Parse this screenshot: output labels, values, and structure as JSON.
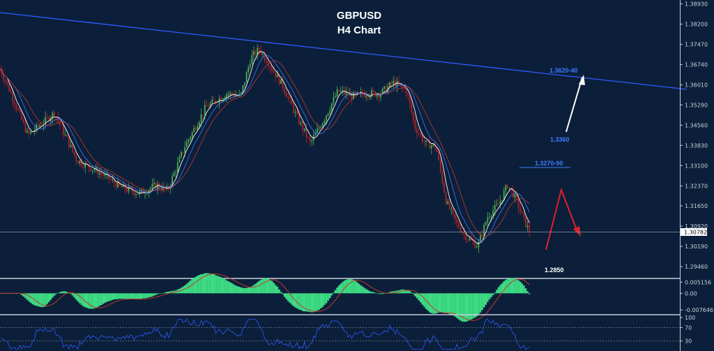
{
  "chart_data": {
    "type": "candlestick",
    "title_line1": "GBPUSD",
    "title_line2": "H4 Chart",
    "price_axis": {
      "ticks": [
        "1.38930",
        "1.38200",
        "1.37470",
        "1.36740",
        "1.36010",
        "1.35290",
        "1.34560",
        "1.33830",
        "1.33100",
        "1.32370",
        "1.31650",
        "1.30920",
        "1.30190",
        "1.29460"
      ],
      "tick_values": [
        1.3893,
        1.382,
        1.3747,
        1.3674,
        1.3601,
        1.3529,
        1.3456,
        1.3383,
        1.331,
        1.3237,
        1.3165,
        1.3092,
        1.3019,
        1.2946
      ],
      "current_price": "1.30782",
      "current_value": 1.30782
    },
    "ylim": [
      1.2906,
      1.3907
    ],
    "annotations": {
      "resistance_zone": "1.3620-40",
      "target_1": "1.3360",
      "zone_2": "1.3270-90",
      "support": "1.2850"
    },
    "colors": {
      "background": "#0b1f3a",
      "bull": "#4caf50",
      "bear": "#b22222",
      "trendline": "#2f5bff",
      "annotation_blue": "#3d7bff",
      "arrow_up": "#ffffff",
      "arrow_red": "#e0202a",
      "oscillator": "#3ddc84"
    },
    "sparse_price_path": [
      [
        0,
        1.366
      ],
      [
        14,
        1.358
      ],
      [
        40,
        1.342
      ],
      [
        78,
        1.35
      ],
      [
        110,
        1.333
      ],
      [
        140,
        1.329
      ],
      [
        175,
        1.323
      ],
      [
        200,
        1.321
      ],
      [
        225,
        1.324
      ],
      [
        240,
        1.322
      ],
      [
        265,
        1.338
      ],
      [
        295,
        1.352
      ],
      [
        325,
        1.357
      ],
      [
        345,
        1.356
      ],
      [
        360,
        1.37
      ],
      [
        372,
        1.373
      ],
      [
        385,
        1.368
      ],
      [
        405,
        1.36
      ],
      [
        425,
        1.349
      ],
      [
        445,
        1.339
      ],
      [
        465,
        1.348
      ],
      [
        485,
        1.358
      ],
      [
        505,
        1.356
      ],
      [
        525,
        1.357
      ],
      [
        545,
        1.357
      ],
      [
        565,
        1.361
      ],
      [
        583,
        1.358
      ],
      [
        595,
        1.345
      ],
      [
        610,
        1.339
      ],
      [
        625,
        1.338
      ],
      [
        640,
        1.318
      ],
      [
        655,
        1.31
      ],
      [
        670,
        1.305
      ],
      [
        685,
        1.302
      ],
      [
        700,
        1.313
      ],
      [
        715,
        1.317
      ],
      [
        728,
        1.324
      ],
      [
        740,
        1.319
      ],
      [
        750,
        1.312
      ],
      [
        760,
        1.307
      ]
    ],
    "macd": {
      "ticks": [
        "0.005156",
        "0.00",
        "-0.007646"
      ],
      "tick_values": [
        0.005156,
        0.0,
        -0.007646
      ],
      "ylim": [
        -0.0092,
        0.0062
      ]
    },
    "rsi": {
      "ticks": [
        "100",
        "70",
        "30"
      ],
      "tick_values": [
        100,
        70,
        30
      ],
      "ylim": [
        0,
        100
      ]
    }
  }
}
